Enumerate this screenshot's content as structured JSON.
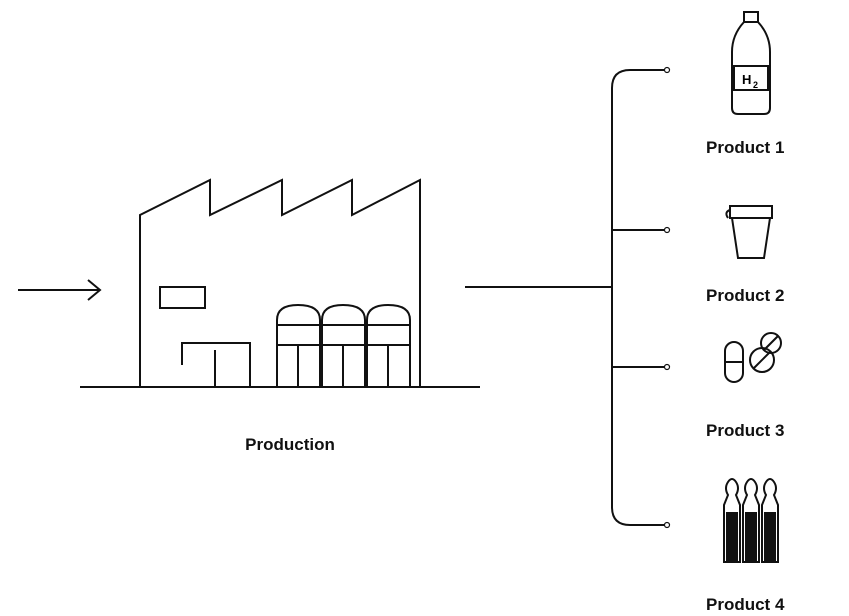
{
  "production": {
    "label": "Production"
  },
  "products": [
    {
      "label": "Product 1",
      "icon_text": "H",
      "icon_subscript": "2"
    },
    {
      "label": "Product 2"
    },
    {
      "label": "Product 3"
    },
    {
      "label": "Product 4"
    }
  ]
}
